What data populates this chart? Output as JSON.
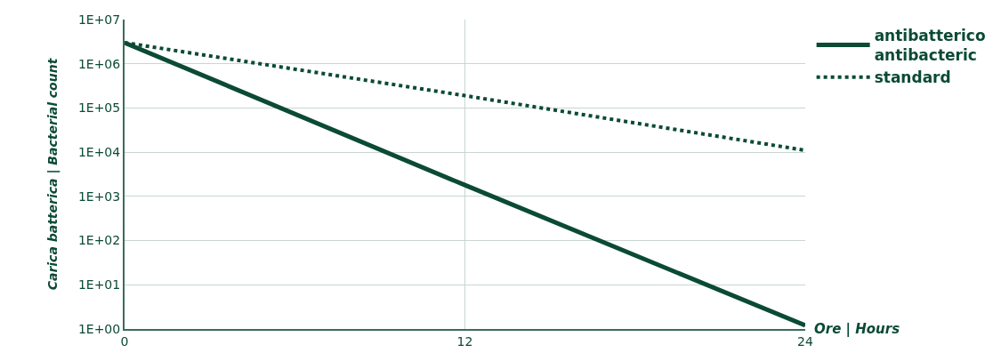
{
  "chart_data": {
    "type": "line",
    "xlabel": "Ore | Hours",
    "ylabel": "Carica batterica | Bacterial count",
    "x": [
      0,
      12,
      24
    ],
    "xlim": [
      0,
      24
    ],
    "xticks": [
      0,
      12,
      24
    ],
    "log": "y",
    "ylim": [
      1,
      10000000
    ],
    "yticks": [
      {
        "value": 1,
        "label": "1E+00"
      },
      {
        "value": 10,
        "label": "1E+01"
      },
      {
        "value": 100,
        "label": "1E+02"
      },
      {
        "value": 1000,
        "label": "1E+03"
      },
      {
        "value": 10000,
        "label": "1E+04"
      },
      {
        "value": 100000,
        "label": "1E+05"
      },
      {
        "value": 1000000,
        "label": "1E+06"
      },
      {
        "value": 10000000,
        "label": "1E+07"
      }
    ],
    "grid": true,
    "legend": "top right",
    "marker": "none",
    "series": [
      {
        "name": "antibatterico\nantibacteric",
        "color": "#0b4a36",
        "line_style": "solid",
        "values": [
          3000000,
          1800,
          1.2
        ]
      },
      {
        "name": "standard",
        "color": "#0b4a36",
        "line_style": "dotted",
        "values": [
          3000000,
          190000,
          11000
        ]
      }
    ]
  }
}
